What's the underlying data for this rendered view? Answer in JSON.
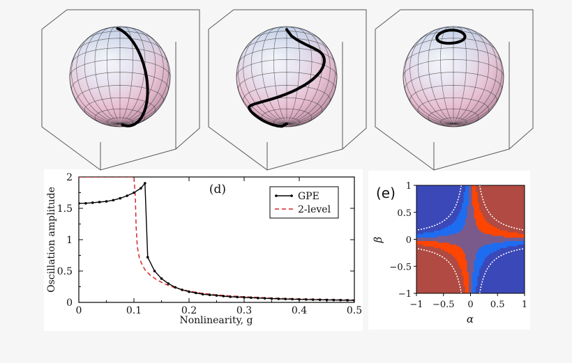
{
  "panel_d": {
    "label": "(d)",
    "chart_data": {
      "type": "line",
      "title": "",
      "xlabel": "Nonlinearity, g",
      "ylabel": "Oscillation amplitude",
      "xlim": [
        0,
        0.5
      ],
      "ylim": [
        0,
        2
      ],
      "x_ticks": [
        "0",
        "0.1",
        "0.2",
        "0.3",
        "0.4",
        "0.5"
      ],
      "y_ticks": [
        "0",
        "0.5",
        "1",
        "1.5",
        "2"
      ],
      "legend_position": "top-right",
      "series": [
        {
          "name": "GPE",
          "style": "solid-with-markers",
          "color": "#000000",
          "x": [
            0,
            0.0125,
            0.025,
            0.0375,
            0.05,
            0.0625,
            0.075,
            0.0875,
            0.1,
            0.1125,
            0.12,
            0.125,
            0.1375,
            0.15,
            0.1625,
            0.175,
            0.1875,
            0.2,
            0.2125,
            0.225,
            0.2375,
            0.25,
            0.2625,
            0.275,
            0.2875,
            0.3,
            0.3125,
            0.325,
            0.3375,
            0.35,
            0.3625,
            0.375,
            0.3875,
            0.4,
            0.4125,
            0.425,
            0.4375,
            0.45,
            0.4625,
            0.475,
            0.4875,
            0.5
          ],
          "y": [
            1.58,
            1.58,
            1.59,
            1.6,
            1.61,
            1.63,
            1.66,
            1.7,
            1.75,
            1.82,
            1.9,
            0.72,
            0.5,
            0.38,
            0.3,
            0.24,
            0.2,
            0.17,
            0.15,
            0.13,
            0.12,
            0.11,
            0.1,
            0.09,
            0.085,
            0.08,
            0.075,
            0.07,
            0.065,
            0.06,
            0.057,
            0.054,
            0.051,
            0.048,
            0.046,
            0.044,
            0.042,
            0.04,
            0.038,
            0.036,
            0.034,
            0.032
          ]
        },
        {
          "name": "2-level",
          "style": "dashed",
          "color": "#d62728",
          "x": [
            0,
            0.05,
            0.1,
            0.1025,
            0.104,
            0.106,
            0.11,
            0.115,
            0.12,
            0.13,
            0.14,
            0.15,
            0.165,
            0.18,
            0.2,
            0.22,
            0.25,
            0.28,
            0.3,
            0.35,
            0.4,
            0.45,
            0.5
          ],
          "y": [
            2,
            2,
            2,
            1.7,
            1.2,
            0.9,
            0.7,
            0.6,
            0.52,
            0.43,
            0.37,
            0.32,
            0.26,
            0.22,
            0.18,
            0.15,
            0.12,
            0.1,
            0.09,
            0.07,
            0.055,
            0.045,
            0.04
          ]
        }
      ]
    }
  },
  "panel_e": {
    "label": "(e)",
    "chart_data": {
      "type": "heatmap",
      "xlabel": "α",
      "ylabel": "β",
      "xlim": [
        -1,
        1
      ],
      "ylim": [
        -1,
        1
      ],
      "x_ticks": [
        "−1",
        "−0.5",
        "0",
        "0.5",
        "1"
      ],
      "y_ticks": [
        "−1",
        "−0.5",
        "0",
        "0.5",
        "1"
      ],
      "colors": {
        "high": "#b04a42",
        "mid_high": "#ff4500",
        "mid": "#7a5a8a",
        "mid_low": "#1e6cf0",
        "low": "#3b48b8"
      }
    }
  },
  "spheres": [
    {
      "name": "sphere-a",
      "trajectory": "great-circle"
    },
    {
      "name": "sphere-b",
      "trajectory": "s-curve"
    },
    {
      "name": "sphere-c",
      "trajectory": "small-loop"
    }
  ]
}
